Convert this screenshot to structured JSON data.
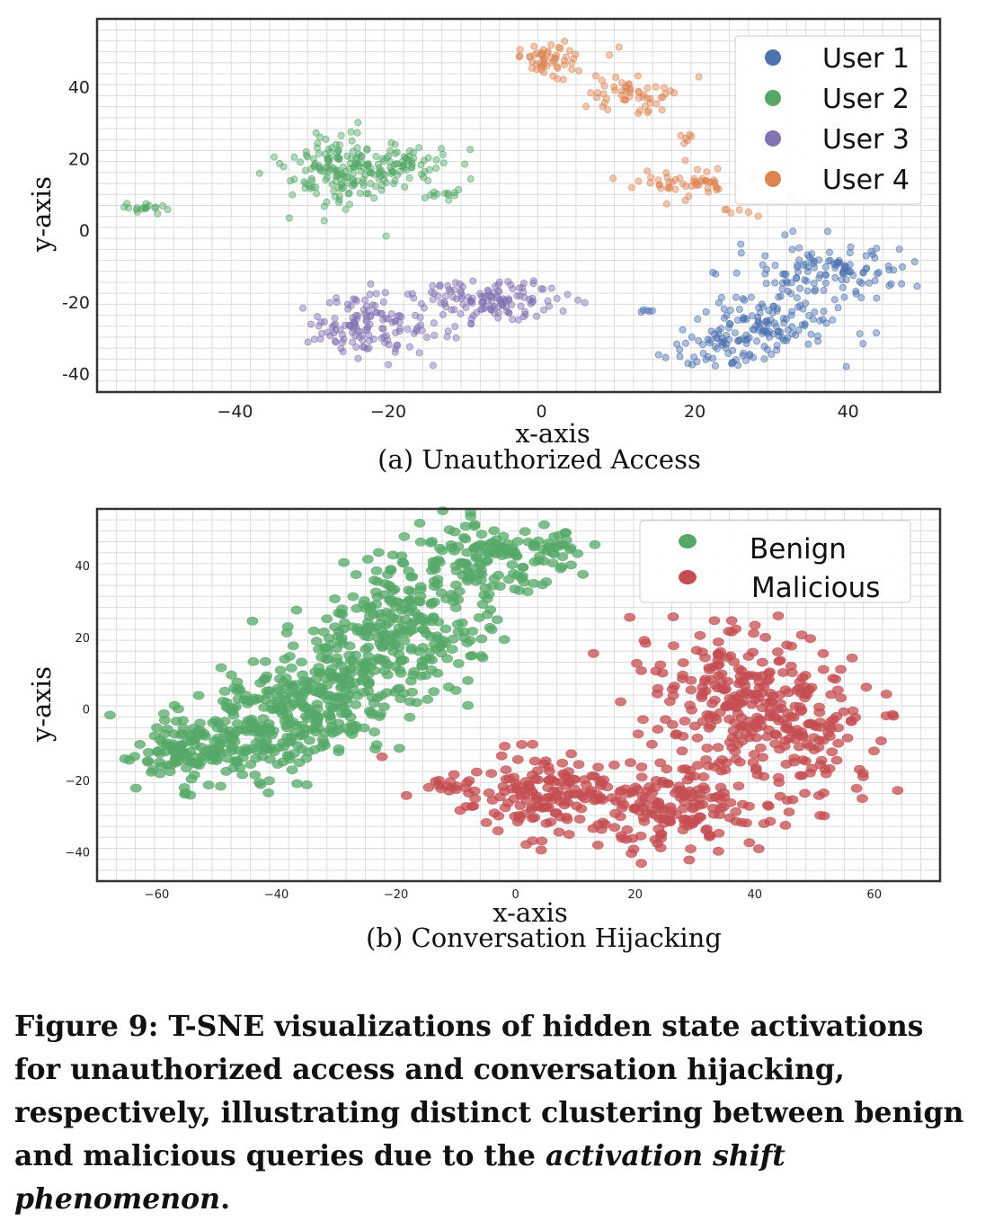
{
  "chart_data": [
    {
      "type": "scatter",
      "title": "",
      "subcaption": "(a) Unauthorized Access",
      "xlabel": "x-axis",
      "ylabel": "y-axis",
      "xlim": [
        -58,
        52
      ],
      "ylim": [
        -45,
        59
      ],
      "xticks": [
        -40,
        -20,
        0,
        20,
        40
      ],
      "xtick_labels": [
        "−40",
        "−20",
        "0",
        "20",
        "40"
      ],
      "yticks": [
        40,
        20,
        0,
        -20,
        -40
      ],
      "ytick_labels": [
        "40",
        "20",
        "0",
        "-20",
        "-40"
      ],
      "grid": true,
      "legend_position": "top-right",
      "series": [
        {
          "name": "User 1",
          "color": "#4c72b0",
          "clusters": [
            {
              "cx": 37,
              "cy": -12,
              "sx": 5,
              "sy": 4,
              "n": 120
            },
            {
              "cx": 30,
              "cy": -26,
              "sx": 5,
              "sy": 4,
              "n": 110
            },
            {
              "cx": 23,
              "cy": -33,
              "sx": 3,
              "sy": 3,
              "n": 60
            },
            {
              "cx": 14,
              "cy": -23,
              "sx": 1,
              "sy": 0.5,
              "n": 5
            }
          ]
        },
        {
          "name": "User 2",
          "color": "#55a868",
          "clusters": [
            {
              "cx": -20,
              "cy": 18,
              "sx": 4,
              "sy": 3,
              "n": 110
            },
            {
              "cx": -27,
              "cy": 16,
              "sx": 3,
              "sy": 5.5,
              "n": 120
            },
            {
              "cx": -13,
              "cy": 10,
              "sx": 2,
              "sy": 1,
              "n": 12
            },
            {
              "cx": -51,
              "cy": 6,
              "sx": 1.3,
              "sy": 0.8,
              "n": 18
            }
          ]
        },
        {
          "name": "User 3",
          "color": "#8172b2",
          "clusters": [
            {
              "cx": -22,
              "cy": -27,
              "sx": 4.5,
              "sy": 4.5,
              "n": 140
            },
            {
              "cx": -6,
              "cy": -19,
              "sx": 5,
              "sy": 3,
              "n": 130
            }
          ]
        },
        {
          "name": "User 4",
          "color": "#dd8452",
          "clusters": [
            {
              "cx": 1,
              "cy": 48,
              "sx": 2.5,
              "sy": 2.5,
              "n": 55
            },
            {
              "cx": 12,
              "cy": 38,
              "sx": 3,
              "sy": 3,
              "n": 55
            },
            {
              "cx": 19,
              "cy": 26,
              "sx": 0.8,
              "sy": 1.2,
              "n": 6
            },
            {
              "cx": 19,
              "cy": 13,
              "sx": 4.5,
              "sy": 2,
              "n": 55
            },
            {
              "cx": 25,
              "cy": 5,
              "sx": 1.5,
              "sy": 0.8,
              "n": 6
            }
          ]
        }
      ]
    },
    {
      "type": "scatter",
      "title": "",
      "subcaption": "(b) Conversation Hijacking",
      "xlabel": "x-axis",
      "ylabel": "y-axis",
      "xlim": [
        -70,
        71
      ],
      "ylim": [
        -48,
        56
      ],
      "xticks": [
        -60,
        -40,
        -20,
        0,
        20,
        40,
        60
      ],
      "xtick_labels": [
        "−60",
        "−40",
        "−20",
        "0",
        "20",
        "40",
        "60"
      ],
      "yticks": [
        40,
        20,
        0,
        -20,
        -40
      ],
      "ytick_labels": [
        "40",
        "20",
        "0",
        "−20",
        "−40"
      ],
      "grid": true,
      "legend_position": "top-right",
      "series": [
        {
          "name": "Benign",
          "color": "#55a868",
          "clusters": [
            {
              "cx": -55,
              "cy": -12,
              "sx": 5,
              "sy": 5,
              "n": 110
            },
            {
              "cx": -42,
              "cy": -5,
              "sx": 6,
              "sy": 7,
              "n": 170
            },
            {
              "cx": -30,
              "cy": 6,
              "sx": 7,
              "sy": 8,
              "n": 220
            },
            {
              "cx": -18,
              "cy": 24,
              "sx": 7,
              "sy": 9,
              "n": 220
            },
            {
              "cx": -5,
              "cy": 42,
              "sx": 7,
              "sy": 5,
              "n": 130
            },
            {
              "cx": 6,
              "cy": 45,
              "sx": 3,
              "sy": 3,
              "n": 20
            }
          ]
        },
        {
          "name": "Malicious",
          "color": "#c44e52",
          "clusters": [
            {
              "cx": 5,
              "cy": -24,
              "sx": 9,
              "sy": 6,
              "n": 170
            },
            {
              "cx": 28,
              "cy": -27,
              "sx": 9,
              "sy": 6,
              "n": 160
            },
            {
              "cx": 40,
              "cy": 3,
              "sx": 9,
              "sy": 10,
              "n": 260
            },
            {
              "cx": 52,
              "cy": -10,
              "sx": 6,
              "sy": 8,
              "n": 70
            },
            {
              "cx": -14,
              "cy": -21,
              "sx": 2,
              "sy": 1,
              "n": 8
            }
          ]
        }
      ]
    }
  ],
  "caption": {
    "label": "Figure 9: T-SNE visualizations of hidden state activations for unauthorized access and conversation hijacking, respectively, illustrating distinct clustering between benign and malicious queries due to the ",
    "emphasis": "activation shift phenomenon",
    "end": "."
  }
}
